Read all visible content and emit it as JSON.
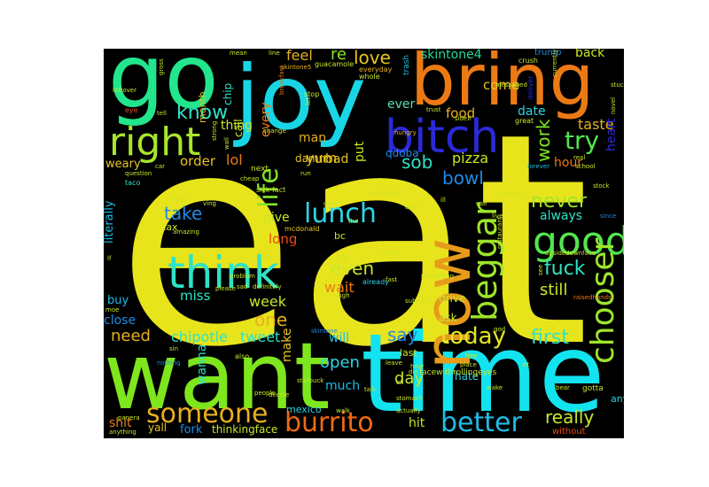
{
  "word_cloud": {
    "background": "#000000",
    "words": [
      {
        "text": "eat",
        "color": "#e8e41c"
      },
      {
        "text": "want",
        "color": "#7ee61d"
      },
      {
        "text": "time",
        "color": "#12e3ef"
      },
      {
        "text": "now",
        "color": "#e79b1a"
      },
      {
        "text": "go",
        "color": "#21e68b"
      },
      {
        "text": "joy",
        "color": "#18d6e6"
      },
      {
        "text": "bring",
        "color": "#ec7a14"
      },
      {
        "text": "bitch",
        "color": "#2a2ad8"
      },
      {
        "text": "right",
        "color": "#a9e62a"
      },
      {
        "text": "good",
        "color": "#52e64e"
      },
      {
        "text": "think",
        "color": "#2ee2c6"
      },
      {
        "text": "beggar",
        "color": "#9ee62a"
      },
      {
        "text": "chooser",
        "color": "#9ee62a"
      },
      {
        "text": "someone",
        "color": "#e8b01f"
      },
      {
        "text": "burrito",
        "color": "#ee6a14"
      },
      {
        "text": "better",
        "color": "#1fbde6"
      },
      {
        "text": "today",
        "color": "#e0e621"
      },
      {
        "text": "lunch",
        "color": "#2ad5e6"
      },
      {
        "text": "life",
        "color": "#83e62a"
      },
      {
        "text": "skintone4",
        "color": "#27d99a"
      },
      {
        "text": "love",
        "color": "#e8c421"
      },
      {
        "text": "feel",
        "color": "#e8b01f"
      },
      {
        "text": "re",
        "color": "#8ee62a"
      },
      {
        "text": "back",
        "color": "#c8e628"
      },
      {
        "text": "know",
        "color": "#2ee2c6"
      },
      {
        "text": "try",
        "color": "#52e64e"
      },
      {
        "text": "taste",
        "color": "#e8b01f"
      },
      {
        "text": "work",
        "color": "#7ee61d"
      },
      {
        "text": "sob",
        "color": "#2ee2c6"
      },
      {
        "text": "bowl",
        "color": "#1f8ae6"
      },
      {
        "text": "pizza",
        "color": "#c8e628"
      },
      {
        "text": "food",
        "color": "#e8b01f"
      },
      {
        "text": "come",
        "color": "#e8c421"
      },
      {
        "text": "date",
        "color": "#2ad5e6"
      },
      {
        "text": "ever",
        "color": "#5ae0a6"
      },
      {
        "text": "never",
        "color": "#9ee62a"
      },
      {
        "text": "fuck",
        "color": "#2ee2c6"
      },
      {
        "text": "always",
        "color": "#2ee2c6"
      },
      {
        "text": "take",
        "color": "#1f8ae6"
      },
      {
        "text": "still",
        "color": "#c8e628"
      },
      {
        "text": "first",
        "color": "#2ee2c6"
      },
      {
        "text": "say",
        "color": "#1f8ae6"
      },
      {
        "text": "really",
        "color": "#c8e628"
      },
      {
        "text": "need",
        "color": "#e8b01f"
      },
      {
        "text": "chipotle",
        "color": "#2ee2c6"
      },
      {
        "text": "tweet",
        "color": "#2ee2c6"
      },
      {
        "text": "one",
        "color": "#e8b01f"
      },
      {
        "text": "week",
        "color": "#c8e628"
      },
      {
        "text": "even",
        "color": "#c8e628"
      },
      {
        "text": "wait",
        "color": "#ec7a14"
      },
      {
        "text": "miss",
        "color": "#2ee2c6"
      },
      {
        "text": "long",
        "color": "#ec4a14"
      },
      {
        "text": "give",
        "color": "#c8e628"
      },
      {
        "text": "open",
        "color": "#2ad5e6"
      },
      {
        "text": "day",
        "color": "#c8e628"
      },
      {
        "text": "much",
        "color": "#1fbde6"
      },
      {
        "text": "will",
        "color": "#1fbde6"
      },
      {
        "text": "make",
        "color": "#e8c421"
      },
      {
        "text": "wanna",
        "color": "#2ee2c6"
      },
      {
        "text": "hit",
        "color": "#c8e628"
      },
      {
        "text": "fork",
        "color": "#1f8ae6"
      },
      {
        "text": "thinkingface",
        "color": "#c8e628"
      },
      {
        "text": "yall",
        "color": "#e8c421"
      },
      {
        "text": "shit",
        "color": "#ec7a14"
      },
      {
        "text": "lol",
        "color": "#ec7a14"
      },
      {
        "text": "order",
        "color": "#e8c421"
      },
      {
        "text": "yum",
        "color": "#e8c421"
      },
      {
        "text": "man",
        "color": "#e8b01f"
      },
      {
        "text": "bad",
        "color": "#e8c421"
      },
      {
        "text": "qdoba",
        "color": "#1f8ae6"
      },
      {
        "text": "hour",
        "color": "#ec7a14"
      },
      {
        "text": "damn",
        "color": "#e8c421"
      },
      {
        "text": "heart",
        "color": "#2a2ad8"
      },
      {
        "text": "thing",
        "color": "#c8e628"
      },
      {
        "text": "close",
        "color": "#1f8ae6"
      },
      {
        "text": "buy",
        "color": "#1fbde6"
      },
      {
        "text": "literally",
        "color": "#1fbde6"
      },
      {
        "text": "weary",
        "color": "#e8c421"
      },
      {
        "text": "every",
        "color": "#ec7a14"
      },
      {
        "text": "call",
        "color": "#c8e628"
      },
      {
        "text": "chip",
        "color": "#2ee2c6"
      },
      {
        "text": "month",
        "color": "#e8c421"
      },
      {
        "text": "tax",
        "color": "#c8e628"
      },
      {
        "text": "bc",
        "color": "#c8e628"
      },
      {
        "text": "ask",
        "color": "#c8e628"
      },
      {
        "text": "drive",
        "color": "#c8e628"
      },
      {
        "text": "hate",
        "color": "#2ad5e6"
      },
      {
        "text": "anyone",
        "color": "#2ad5e6"
      },
      {
        "text": "mexico",
        "color": "#2ad5e6"
      },
      {
        "text": "last",
        "color": "#c8e628"
      },
      {
        "text": "facewithrollingeyes",
        "color": "#c8e628"
      },
      {
        "text": "without",
        "color": "#ec4a14"
      },
      {
        "text": "gotta",
        "color": "#c8e628"
      },
      {
        "text": "cry",
        "color": "#c8e628"
      },
      {
        "text": "already",
        "color": "#2ad5e6"
      },
      {
        "text": "mcdonald",
        "color": "#e8c421"
      },
      {
        "text": "next",
        "color": "#c8e628"
      },
      {
        "text": "sick",
        "color": "#c8e628"
      },
      {
        "text": "fact",
        "color": "#c8e628"
      },
      {
        "text": "stop",
        "color": "#c8e628"
      },
      {
        "text": "trump",
        "color": "#1f8ae6"
      },
      {
        "text": "crush",
        "color": "#c8e628"
      },
      {
        "text": "trash",
        "color": "#1fbde6"
      },
      {
        "text": "everyday",
        "color": "#e8b01f"
      },
      {
        "text": "whole",
        "color": "#c8e628"
      },
      {
        "text": "trust",
        "color": "#c8e628"
      },
      {
        "text": "great",
        "color": "#c8e628"
      },
      {
        "text": "deliver",
        "color": "#2a2ad8"
      },
      {
        "text": "mean",
        "color": "#c8e628"
      },
      {
        "text": "line",
        "color": "#c8e628"
      },
      {
        "text": "breakfast",
        "color": "#ec7a14"
      },
      {
        "text": "change",
        "color": "#c8e628"
      },
      {
        "text": "eye",
        "color": "#ec4a14"
      },
      {
        "text": "leftover",
        "color": "#c8e628"
      },
      {
        "text": "tell",
        "color": "#c8e628"
      },
      {
        "text": "taco",
        "color": "#2ee2c6"
      },
      {
        "text": "car",
        "color": "#c8e628"
      },
      {
        "text": "question",
        "color": "#c8e628"
      },
      {
        "text": "cheap",
        "color": "#c8e628"
      },
      {
        "text": "everyone",
        "color": "#c8e628"
      },
      {
        "text": "live",
        "color": "#c8e628"
      },
      {
        "text": "forever",
        "color": "#1fbde6"
      },
      {
        "text": "school",
        "color": "#c8e628"
      },
      {
        "text": "stock",
        "color": "#c8e628"
      },
      {
        "text": "since",
        "color": "#1f8ae6"
      },
      {
        "text": "upsidedownface",
        "color": "#c8e628"
      },
      {
        "text": "raisedhands",
        "color": "#ec7a14"
      },
      {
        "text": "something",
        "color": "#c8e628"
      },
      {
        "text": "restaurant",
        "color": "#c8e628"
      },
      {
        "text": "please",
        "color": "#c8e628"
      },
      {
        "text": "definitely",
        "color": "#c8e628"
      },
      {
        "text": "laugh",
        "color": "#c8e628"
      },
      {
        "text": "subway",
        "color": "#c8e628"
      },
      {
        "text": "free",
        "color": "#c8e628"
      },
      {
        "text": "place",
        "color": "#c8e628"
      },
      {
        "text": "leave",
        "color": "#c8e628"
      },
      {
        "text": "hear",
        "color": "#c8e628"
      },
      {
        "text": "die",
        "color": "#c8e628"
      },
      {
        "text": "wake",
        "color": "#c8e628"
      },
      {
        "text": "talk",
        "color": "#c8e628"
      },
      {
        "text": "stomach",
        "color": "#c8e628"
      },
      {
        "text": "actually",
        "color": "#c8e628"
      },
      {
        "text": "starbuck",
        "color": "#c8e628"
      },
      {
        "text": "decide",
        "color": "#c8e628"
      },
      {
        "text": "people",
        "color": "#c8e628"
      },
      {
        "text": "panera",
        "color": "#c8e628"
      },
      {
        "text": "anything",
        "color": "#c8e628"
      },
      {
        "text": "nothing",
        "color": "#1f8ae6"
      },
      {
        "text": "moe",
        "color": "#c8e628"
      },
      {
        "text": "problem",
        "color": "#c8e628"
      },
      {
        "text": "okay",
        "color": "#c8e628"
      },
      {
        "text": "home",
        "color": "#c8e628"
      },
      {
        "text": "amazing",
        "color": "#c8e628"
      },
      {
        "text": "somebody",
        "color": "#c8e628"
      },
      {
        "text": "gym",
        "color": "#c8e628"
      },
      {
        "text": "run",
        "color": "#c8e628"
      },
      {
        "text": "guacamole",
        "color": "#c8e628"
      },
      {
        "text": "skintone5",
        "color": "#e8b01f"
      },
      {
        "text": "messaged",
        "color": "#c8e628"
      },
      {
        "text": "currently",
        "color": "#c8e628"
      },
      {
        "text": "stuckouttongue",
        "color": "#c8e628"
      },
      {
        "text": "sad",
        "color": "#c8e628"
      },
      {
        "text": "yeah",
        "color": "#c8e628"
      },
      {
        "text": "real",
        "color": "#c8e628"
      },
      {
        "text": "sit",
        "color": "#c8e628"
      },
      {
        "text": "bear",
        "color": "#c8e628"
      },
      {
        "text": "let",
        "color": "#c8e628"
      },
      {
        "text": "wall",
        "color": "#c8e628"
      },
      {
        "text": "strong",
        "color": "#c8e628"
      },
      {
        "text": "novel",
        "color": "#c8e628"
      },
      {
        "text": "gross",
        "color": "#c8e628"
      },
      {
        "text": "sidell",
        "color": "#c8e628"
      },
      {
        "text": "see",
        "color": "#c8e628"
      },
      {
        "text": "god",
        "color": "#c8e628"
      },
      {
        "text": "sin",
        "color": "#c8e628"
      },
      {
        "text": "also",
        "color": "#c8e628"
      },
      {
        "text": "skintone",
        "color": "#1f8ae6"
      },
      {
        "text": "walk",
        "color": "#c8e628"
      },
      {
        "text": "hold",
        "color": "#c8e628"
      },
      {
        "text": "ving",
        "color": "#c8e628"
      },
      {
        "text": "tho",
        "color": "#c8e628"
      },
      {
        "text": "fast",
        "color": "#c8e628"
      },
      {
        "text": "lf",
        "color": "#c8e628"
      },
      {
        "text": "ill",
        "color": "#c8e628"
      },
      {
        "text": "use",
        "color": "#c8e628"
      },
      {
        "text": "put",
        "color": "#c8e628"
      },
      {
        "text": "hungry",
        "color": "#e8b01f"
      },
      {
        "text": "ok",
        "color": "#c8e628"
      },
      {
        "text": "id",
        "color": "#c8e628"
      }
    ]
  }
}
